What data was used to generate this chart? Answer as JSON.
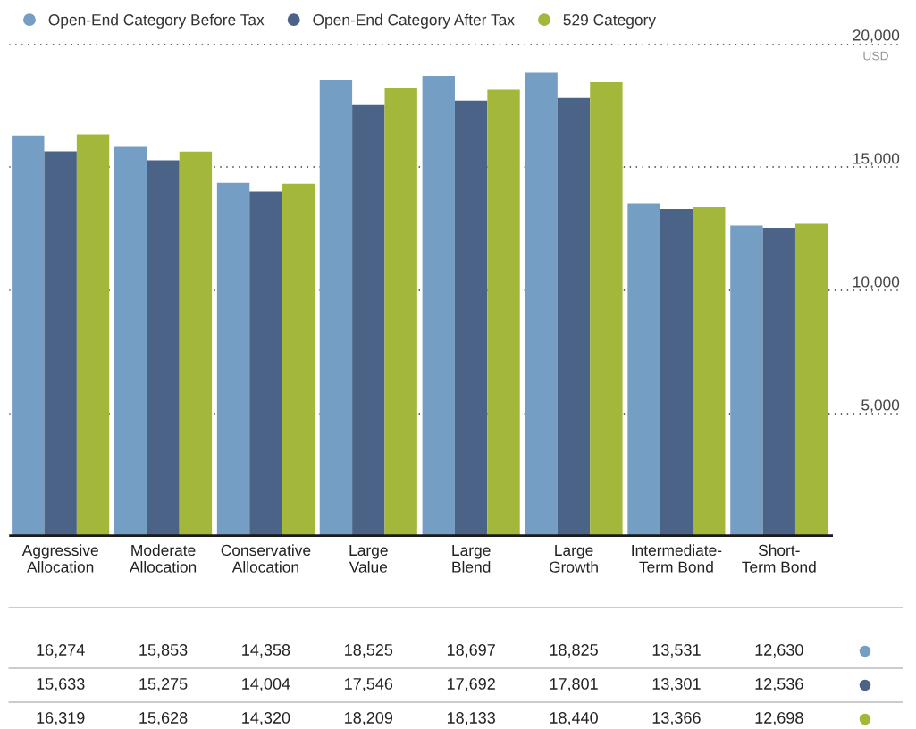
{
  "chart_data": {
    "type": "bar",
    "categories": [
      "Aggressive\nAllocation",
      "Moderate\nAllocation",
      "Conservative\nAllocation",
      "Large\nValue",
      "Large\nBlend",
      "Large\nGrowth",
      "Intermediate-\nTerm Bond",
      "Short-\nTerm Bond"
    ],
    "series": [
      {
        "name": "Open-End Category Before Tax",
        "color": "#759ec5",
        "values": [
          16274,
          15853,
          14358,
          18525,
          18697,
          18825,
          13531,
          12630
        ],
        "value_labels": [
          "16,274",
          "15,853",
          "14,358",
          "18,525",
          "18,697",
          "18,825",
          "13,531",
          "12,630"
        ]
      },
      {
        "name": "Open-End Category After Tax",
        "color": "#4a6387",
        "values": [
          15633,
          15275,
          14004,
          17546,
          17692,
          17801,
          13301,
          12536
        ],
        "value_labels": [
          "15,633",
          "15,275",
          "14,004",
          "17,546",
          "17,692",
          "17,801",
          "13,301",
          "12,536"
        ]
      },
      {
        "name": "529 Category",
        "color": "#a3b83a",
        "values": [
          16319,
          15628,
          14320,
          18209,
          18133,
          18440,
          13366,
          12698
        ],
        "value_labels": [
          "16,319",
          "15,628",
          "14,320",
          "18,209",
          "18,133",
          "18,440",
          "13,366",
          "12,698"
        ]
      }
    ],
    "ylim": [
      0,
      20000
    ],
    "yticks": [
      {
        "value": 5000,
        "label": "5,000"
      },
      {
        "value": 10000,
        "label": "10,000"
      },
      {
        "value": 15000,
        "label": "15,000"
      },
      {
        "value": 20000,
        "label": "20,000"
      }
    ],
    "ylabel": "USD",
    "grid": "y",
    "legend": "top left",
    "marker": "circle"
  }
}
